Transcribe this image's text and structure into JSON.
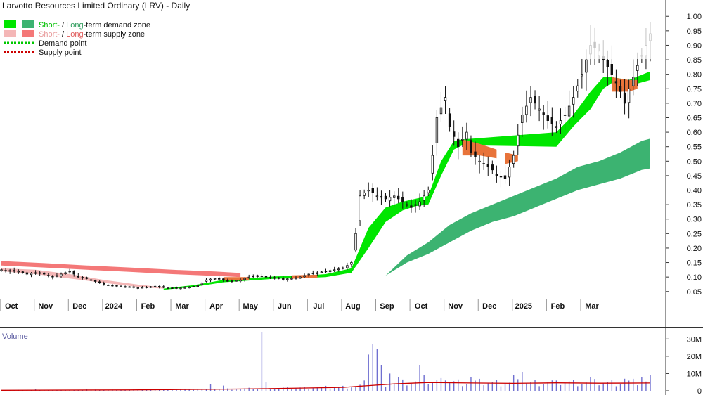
{
  "chart_data": {
    "type": "candlestick",
    "title": "Larvotto Resources Limited Ordinary (LRV) - Daily",
    "legend": {
      "demand_zone": {
        "short": "Short-",
        "sep": " / ",
        "long": "Long",
        "rest": "-term demand zone"
      },
      "supply_zone": {
        "short": "Short-",
        "sep": " / ",
        "long": "Long",
        "rest": "-term supply zone"
      },
      "demand_point": "Demand point",
      "supply_point": "Supply point"
    },
    "x_months": [
      "Oct",
      "Nov",
      "Dec",
      "2024",
      "Feb",
      "Mar",
      "Apr",
      "May",
      "Jun",
      "Jul",
      "Aug",
      "Sep",
      "Oct",
      "Nov",
      "Dec",
      "2025",
      "Feb",
      "Mar"
    ],
    "price_axis": {
      "ticks": [
        "1.00",
        "0.95",
        "0.90",
        "0.85",
        "0.80",
        "0.75",
        "0.70",
        "0.65",
        "0.60",
        "0.55",
        "0.50",
        "0.45",
        "0.40",
        "0.35",
        "0.30",
        "0.25",
        "0.20",
        "0.15",
        "0.10",
        "0.05"
      ],
      "ylim": [
        0.03,
        1.02
      ]
    },
    "volume_axis": {
      "label": "Volume",
      "ticks": [
        "30M",
        "20M",
        "10M",
        "0"
      ],
      "ylim": [
        0,
        35
      ]
    },
    "price_path": [
      [
        0,
        0.125
      ],
      [
        2,
        0.12
      ],
      [
        4,
        0.12
      ],
      [
        6,
        0.11
      ],
      [
        8,
        0.115
      ],
      [
        10,
        0.11
      ],
      [
        12,
        0.1
      ],
      [
        14,
        0.11
      ],
      [
        16,
        0.12
      ],
      [
        18,
        0.1
      ],
      [
        20,
        0.095
      ],
      [
        22,
        0.085
      ],
      [
        24,
        0.075
      ],
      [
        26,
        0.07
      ],
      [
        28,
        0.068
      ],
      [
        30,
        0.065
      ],
      [
        32,
        0.063
      ],
      [
        34,
        0.065
      ],
      [
        36,
        0.068
      ],
      [
        38,
        0.064
      ],
      [
        40,
        0.062
      ],
      [
        42,
        0.062
      ],
      [
        44,
        0.065
      ],
      [
        46,
        0.07
      ],
      [
        48,
        0.09
      ],
      [
        50,
        0.095
      ],
      [
        52,
        0.09
      ],
      [
        54,
        0.085
      ],
      [
        56,
        0.09
      ],
      [
        58,
        0.1
      ],
      [
        60,
        0.105
      ],
      [
        62,
        0.1
      ],
      [
        64,
        0.098
      ],
      [
        66,
        0.092
      ],
      [
        68,
        0.095
      ],
      [
        70,
        0.1
      ],
      [
        72,
        0.11
      ],
      [
        74,
        0.115
      ],
      [
        76,
        0.12
      ],
      [
        78,
        0.125
      ],
      [
        80,
        0.13
      ],
      [
        82,
        0.15
      ],
      [
        83,
        0.25
      ],
      [
        84,
        0.38
      ],
      [
        86,
        0.4
      ],
      [
        88,
        0.38
      ],
      [
        90,
        0.37
      ],
      [
        92,
        0.38
      ],
      [
        94,
        0.36
      ],
      [
        96,
        0.34
      ],
      [
        98,
        0.36
      ],
      [
        100,
        0.4
      ],
      [
        101,
        0.52
      ],
      [
        102,
        0.65
      ],
      [
        104,
        0.72
      ],
      [
        105,
        0.62
      ],
      [
        107,
        0.55
      ],
      [
        109,
        0.6
      ],
      [
        110,
        0.53
      ],
      [
        112,
        0.5
      ],
      [
        114,
        0.48
      ],
      [
        115,
        0.47
      ],
      [
        116,
        0.45
      ],
      [
        118,
        0.44
      ],
      [
        120,
        0.52
      ],
      [
        122,
        0.66
      ],
      [
        124,
        0.72
      ],
      [
        126,
        0.68
      ],
      [
        128,
        0.64
      ],
      [
        130,
        0.62
      ],
      [
        132,
        0.66
      ],
      [
        134,
        0.72
      ],
      [
        136,
        0.8
      ],
      [
        138,
        0.9
      ],
      [
        140,
        0.88
      ],
      [
        141,
        0.85
      ],
      [
        143,
        0.8
      ],
      [
        145,
        0.74
      ],
      [
        146,
        0.7
      ],
      [
        147,
        0.75
      ],
      [
        149,
        0.83
      ],
      [
        151,
        0.9
      ],
      [
        152,
        0.94
      ]
    ],
    "short_demand_zone": [
      [
        38,
        0.056,
        0.06
      ],
      [
        45,
        0.066,
        0.072
      ],
      [
        52,
        0.082,
        0.09
      ],
      [
        58,
        0.088,
        0.096
      ],
      [
        64,
        0.094,
        0.102
      ],
      [
        70,
        0.096,
        0.104
      ],
      [
        76,
        0.1,
        0.11
      ],
      [
        82,
        0.115,
        0.13
      ],
      [
        86,
        0.2,
        0.27
      ],
      [
        90,
        0.29,
        0.34
      ],
      [
        94,
        0.33,
        0.36
      ],
      [
        97,
        0.345,
        0.37
      ],
      [
        100,
        0.35,
        0.38
      ],
      [
        103,
        0.45,
        0.5
      ],
      [
        106,
        0.54,
        0.57
      ],
      [
        108,
        0.555,
        0.575
      ],
      [
        130,
        0.55,
        0.6
      ],
      [
        134,
        0.62,
        0.66
      ],
      [
        138,
        0.68,
        0.74
      ],
      [
        141,
        0.75,
        0.79
      ],
      [
        143,
        0.77,
        0.79
      ],
      [
        147,
        0.76,
        0.78
      ],
      [
        152,
        0.78,
        0.81
      ]
    ],
    "long_demand_zone": [
      [
        90,
        0.105,
        0.105
      ],
      [
        95,
        0.15,
        0.175
      ],
      [
        100,
        0.18,
        0.22
      ],
      [
        105,
        0.22,
        0.28
      ],
      [
        110,
        0.26,
        0.32
      ],
      [
        115,
        0.29,
        0.35
      ],
      [
        120,
        0.31,
        0.38
      ],
      [
        125,
        0.34,
        0.41
      ],
      [
        130,
        0.37,
        0.44
      ],
      [
        135,
        0.4,
        0.48
      ],
      [
        140,
        0.42,
        0.5
      ],
      [
        145,
        0.44,
        0.53
      ],
      [
        150,
        0.47,
        0.57
      ],
      [
        152,
        0.475,
        0.578
      ]
    ],
    "long_supply_zone": [
      [
        0,
        0.14,
        0.155
      ],
      [
        10,
        0.133,
        0.148
      ],
      [
        20,
        0.125,
        0.14
      ],
      [
        30,
        0.118,
        0.133
      ],
      [
        40,
        0.11,
        0.125
      ],
      [
        50,
        0.104,
        0.119
      ],
      [
        56,
        0.1,
        0.114
      ]
    ],
    "short_supply_zone": [
      [
        0,
        0.12,
        0.13
      ],
      [
        8,
        0.11,
        0.125
      ],
      [
        16,
        0.095,
        0.11
      ],
      [
        24,
        0.08,
        0.09
      ],
      [
        32,
        0.066,
        0.074
      ],
      [
        38,
        0.06,
        0.064
      ]
    ],
    "supply_overlap_zones": [
      [
        [
          52,
          0.088,
          0.1
        ],
        [
          58,
          0.09,
          0.1
        ]
      ],
      [
        [
          68,
          0.094,
          0.106
        ],
        [
          74,
          0.098,
          0.108
        ]
      ],
      [
        [
          108,
          0.52,
          0.575
        ],
        [
          112,
          0.52,
          0.56
        ],
        [
          116,
          0.51,
          0.54
        ]
      ],
      [
        [
          118,
          0.49,
          0.53
        ],
        [
          121,
          0.5,
          0.52
        ]
      ],
      [
        [
          143,
          0.74,
          0.79
        ],
        [
          147,
          0.74,
          0.78
        ],
        [
          149,
          0.75,
          0.78
        ]
      ]
    ],
    "volume_average_path": [
      [
        0,
        0.3
      ],
      [
        30,
        0.5
      ],
      [
        55,
        1.0
      ],
      [
        60,
        1.2
      ],
      [
        80,
        2.0
      ],
      [
        86,
        3.0
      ],
      [
        92,
        4.0
      ],
      [
        100,
        4.8
      ],
      [
        110,
        4.5
      ],
      [
        120,
        4.3
      ],
      [
        130,
        4.6
      ],
      [
        140,
        4.4
      ],
      [
        152,
        4.5
      ]
    ],
    "volume_spikes": [
      [
        8,
        1.2
      ],
      [
        20,
        0.8
      ],
      [
        49,
        4.0
      ],
      [
        52,
        3.0
      ],
      [
        61,
        34.0
      ],
      [
        62,
        5.0
      ],
      [
        85,
        6.0
      ],
      [
        86,
        21.0
      ],
      [
        87,
        27.0
      ],
      [
        88,
        24.0
      ],
      [
        89,
        15.0
      ],
      [
        91,
        10.0
      ],
      [
        93,
        8.0
      ],
      [
        98,
        15.0
      ],
      [
        99,
        9.0
      ],
      [
        104,
        6.0
      ],
      [
        110,
        8.0
      ],
      [
        120,
        9.0
      ],
      [
        122,
        11.0
      ],
      [
        130,
        6.0
      ],
      [
        138,
        8.0
      ],
      [
        146,
        7.0
      ],
      [
        150,
        8.0
      ],
      [
        152,
        9.0
      ]
    ],
    "colors": {
      "short_demand": "#00e600",
      "long_demand": "#3cb371",
      "short_supply": "#f4b7b7",
      "long_supply": "#f47878",
      "overlap": "#e8733a",
      "demand_point": "#00c800",
      "supply_point": "#cc0000",
      "volume_bar": "#6f6fd0",
      "volume_avg": "#cc0000"
    }
  }
}
